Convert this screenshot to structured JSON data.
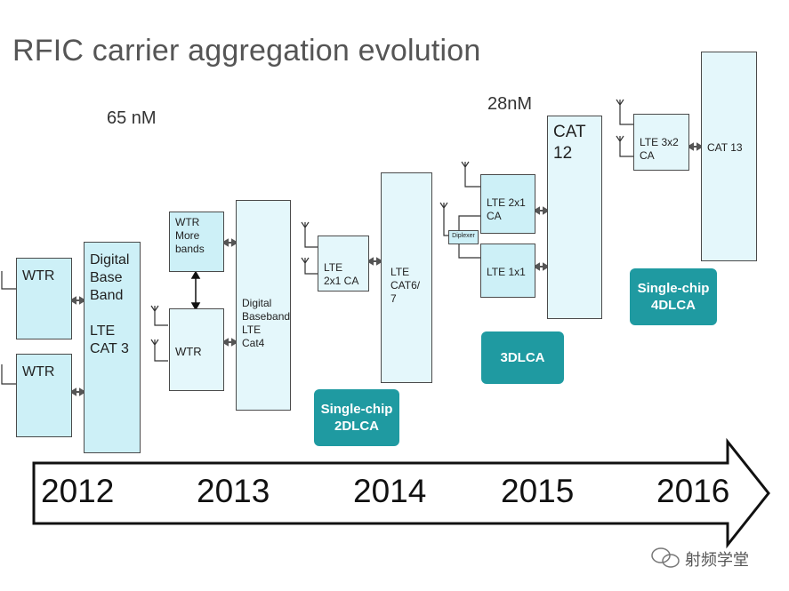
{
  "title": "RFIC carrier aggregation evolution",
  "process_labels": {
    "n65": "65 nM",
    "n28": "28nM"
  },
  "boxes": {
    "wtr_a": "WTR",
    "wtr_b": "WTR",
    "digital_base_band": "Digital\nBase\nBand\n\nLTE\nCAT 3",
    "wtr_more_bands": "WTR\nMore\nbands",
    "wtr_2013": "WTR",
    "digital_baseband_cat4": "Digital\nBaseband\nLTE\nCat4",
    "lte_2x1_ca_2014": "LTE\n2x1 CA",
    "lte_cat6_7": "LTE\nCAT6/\n7",
    "lte_2x1_ca_2015": "LTE 2x1\nCA",
    "lte_1x1": "LTE 1x1",
    "diplexer": "Diplexer",
    "cat12": "CAT\n12",
    "lte_3x2_ca": "LTE 3x2\nCA",
    "cat13": "CAT 13"
  },
  "badges": {
    "single_chip_2dlca": "Single-chip\n2DLCA",
    "dlca3": "3DLCA",
    "single_chip_4dlca": "Single-chip\n4DLCA"
  },
  "timeline": {
    "years": [
      "2012",
      "2013",
      "2014",
      "2015",
      "2016"
    ]
  },
  "watermark": "射频学堂",
  "colors": {
    "box_fill": "#cdf0f7",
    "badge": "#1f9aa1",
    "title": "#555555"
  }
}
